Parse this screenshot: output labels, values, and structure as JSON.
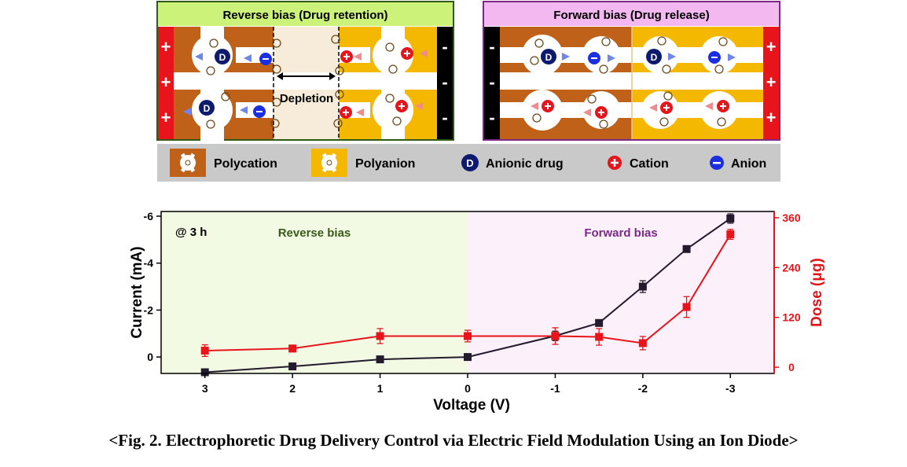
{
  "schematic": {
    "reverse_panel": {
      "title": "Reverse bias (Drug retention)",
      "depletion_label": "Depletion",
      "left_electrode_sign": "+",
      "right_electrode_sign": "-",
      "header_color": "#ccf27a",
      "border_color": "#2e5a14"
    },
    "forward_panel": {
      "title": "Forward bias (Drug release)",
      "left_electrode_sign": "-",
      "right_electrode_sign": "+",
      "header_color": "#f3b8f0",
      "border_color": "#7a2a86"
    },
    "colors": {
      "polycation": "#c0611a",
      "polyanion": "#f4b800",
      "drug": "#0d1a6e",
      "cation": "#e8141b",
      "anion": "#1b2fe0",
      "electrode_red": "#e8141b",
      "electrode_black": "#000000"
    },
    "drug_symbol": "D",
    "legend": [
      {
        "icon": "polycation-icon",
        "label": "Polycation"
      },
      {
        "icon": "polyanion-icon",
        "label": "Polyanion"
      },
      {
        "icon": "anionic-drug-icon",
        "label": "Anionic drug"
      },
      {
        "icon": "cation-icon",
        "label": "Cation"
      },
      {
        "icon": "anion-icon",
        "label": "Anion"
      }
    ]
  },
  "chart_data": {
    "type": "line",
    "annotation": "@ 3 h",
    "regions": [
      {
        "label": "Reverse bias",
        "from": 3.5,
        "to": 0,
        "color": "#f2fae3",
        "label_color": "#3b5a1a"
      },
      {
        "label": "Forward bias",
        "from": 0,
        "to": -3.5,
        "color": "#fcf0fb",
        "label_color": "#7a2a86"
      }
    ],
    "xlabel": "Voltage (V)",
    "xlim": [
      3.5,
      -3.5
    ],
    "xticks": [
      3,
      2,
      1,
      0,
      -1,
      -2,
      -3
    ],
    "xtick_labels": [
      "3",
      "2",
      "1",
      "0",
      "-1",
      "-2",
      "-3"
    ],
    "left_axis": {
      "label": "Current (mA)",
      "ylim": [
        0.7,
        -6.2
      ],
      "ticks": [
        -6,
        -4,
        -2,
        0
      ],
      "tick_labels": [
        "-6",
        "-4",
        "-2",
        "0"
      ],
      "color": "#000000"
    },
    "right_axis": {
      "label": "Dose (μg)",
      "ylim": [
        -15,
        375
      ],
      "ticks": [
        0,
        120,
        240,
        360
      ],
      "tick_labels": [
        "0",
        "120",
        "240",
        "360"
      ],
      "color": "#e0141b"
    },
    "series": [
      {
        "axis": "left",
        "color": "#231a2e",
        "points": [
          {
            "x": 3,
            "y": 0.65,
            "err": 0.1
          },
          {
            "x": 2,
            "y": 0.4,
            "err": 0.1
          },
          {
            "x": 1,
            "y": 0.1,
            "err": 0.1
          },
          {
            "x": 0,
            "y": 0.0,
            "err": 0.1
          },
          {
            "x": -1,
            "y": -0.9,
            "err": 0.2
          },
          {
            "x": -1.5,
            "y": -1.45,
            "err": 0.1
          },
          {
            "x": -2,
            "y": -3.0,
            "err": 0.25
          },
          {
            "x": -2.5,
            "y": -4.6,
            "err": 0.1
          },
          {
            "x": -3,
            "y": -5.9,
            "err": 0.2
          }
        ]
      },
      {
        "axis": "right",
        "color": "#e8141b",
        "points": [
          {
            "x": 3,
            "y": 40,
            "err": 14
          },
          {
            "x": 2,
            "y": 45,
            "err": 8
          },
          {
            "x": 1,
            "y": 75,
            "err": 18
          },
          {
            "x": 0,
            "y": 75,
            "err": 14
          },
          {
            "x": -1,
            "y": 75,
            "err": 20
          },
          {
            "x": -1.5,
            "y": 73,
            "err": 20
          },
          {
            "x": -2,
            "y": 58,
            "err": 16
          },
          {
            "x": -2.5,
            "y": 145,
            "err": 25
          },
          {
            "x": -3,
            "y": 320,
            "err": 12
          }
        ]
      }
    ]
  },
  "caption": "<Fig. 2. Electrophoretic Drug Delivery Control via Electric Field Modulation Using an Ion Diode>"
}
